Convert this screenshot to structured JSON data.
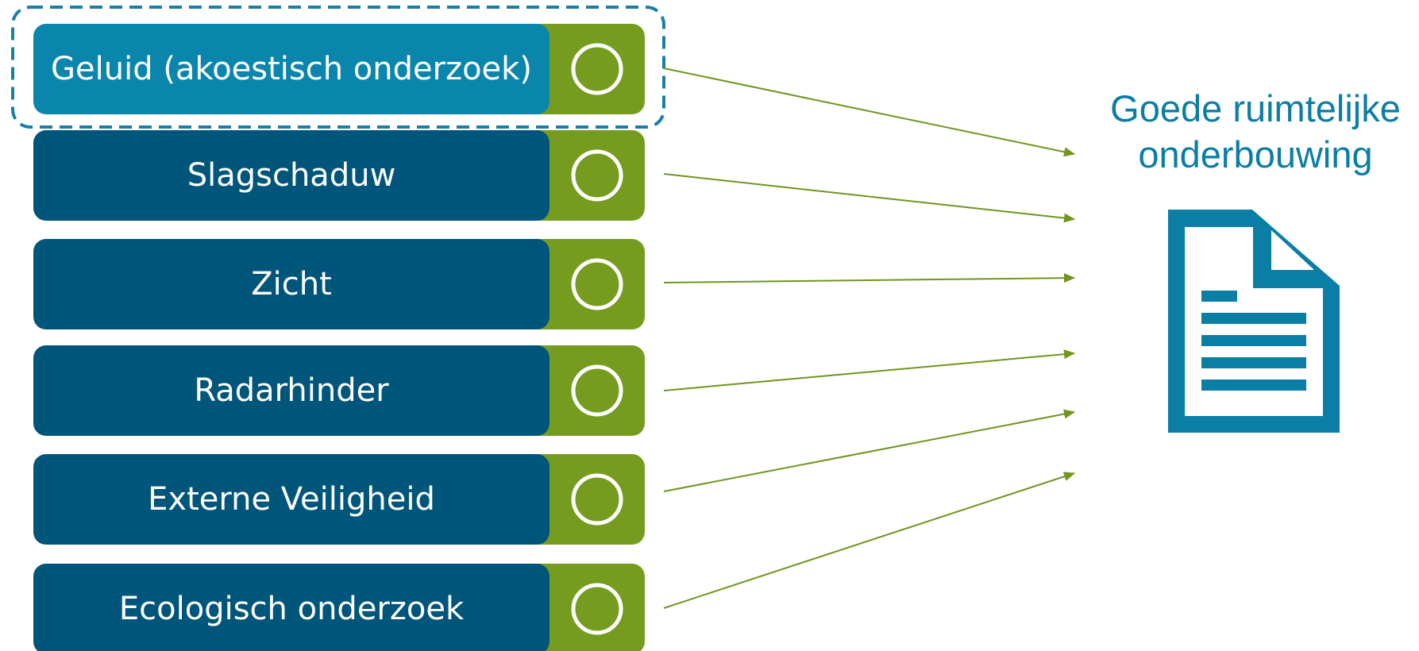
{
  "items": [
    {
      "label": "Geluid (akoestisch onderzoek)"
    },
    {
      "label": "Slagschaduw"
    },
    {
      "label": "Zicht"
    },
    {
      "label": "Radarhinder"
    },
    {
      "label": "Externe Veiligheid"
    },
    {
      "label": "Ecologisch onderzoek"
    }
  ],
  "result": {
    "title_lines": [
      "Goede ruimtelijke",
      "onderbouwing"
    ]
  }
}
